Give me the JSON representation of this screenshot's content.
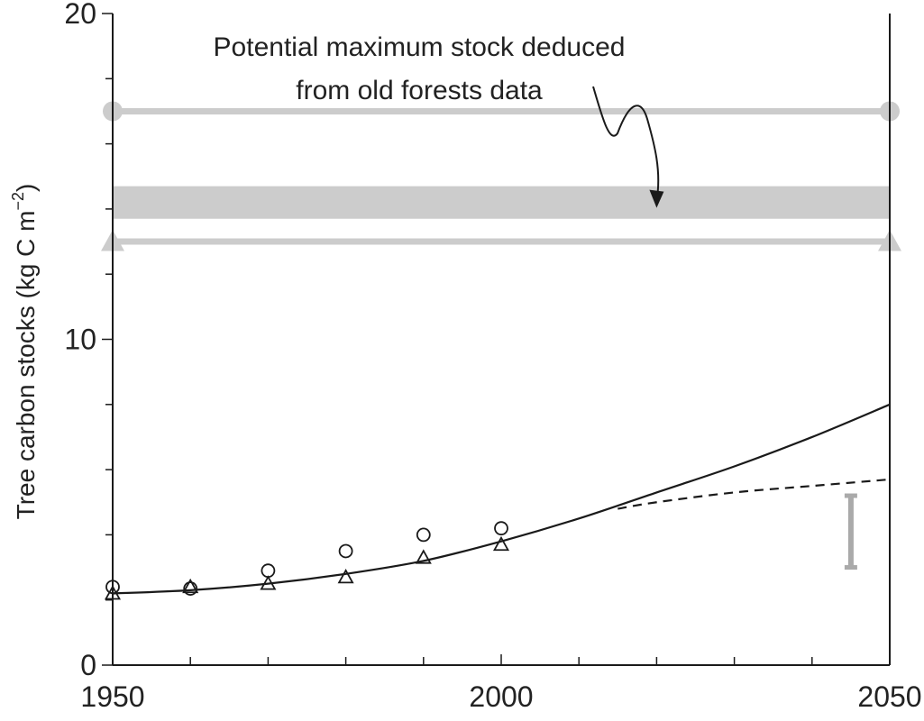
{
  "chart_data": {
    "type": "line",
    "title": "",
    "xlabel": "",
    "ylabel": "Tree carbon stocks (kg C m",
    "ylabel_sup": "−2",
    "ylabel_close": ")",
    "xlim": [
      1950,
      2050
    ],
    "ylim": [
      0,
      20
    ],
    "x_ticks": [
      1950,
      2000,
      2050
    ],
    "y_ticks": [
      0,
      10,
      20
    ],
    "x_minor_step": 10,
    "y_minor_step": 2,
    "grid": false,
    "legend": "none",
    "series": [
      {
        "style": "solid",
        "color": "#1a1a1a",
        "x": [
          1950,
          1960,
          1970,
          1980,
          1990,
          2000,
          2010,
          2020,
          2030,
          2040,
          2050
        ],
        "y": [
          2.2,
          2.3,
          2.5,
          2.8,
          3.2,
          3.8,
          4.5,
          5.3,
          6.1,
          7.0,
          8.0
        ]
      },
      {
        "style": "dashed",
        "color": "#1a1a1a",
        "x": [
          2015,
          2020,
          2030,
          2040,
          2050
        ],
        "y": [
          4.8,
          5.0,
          5.3,
          5.5,
          5.7
        ]
      },
      {
        "style": "markers",
        "marker": "circle",
        "color": "#1a1a1a",
        "x": [
          1950,
          1960,
          1970,
          1980,
          1990,
          2000
        ],
        "y": [
          2.4,
          2.35,
          2.9,
          3.5,
          4.0,
          4.2
        ]
      },
      {
        "style": "markers",
        "marker": "triangle",
        "color": "#1a1a1a",
        "x": [
          1950,
          1960,
          1970,
          1980,
          1990,
          2000
        ],
        "y": [
          2.2,
          2.4,
          2.5,
          2.7,
          3.3,
          3.7
        ]
      }
    ],
    "reference_lines": [
      {
        "y": 17.0,
        "end_marker": "circle",
        "color": "#cccccc"
      },
      {
        "y": 13.0,
        "end_marker": "triangle",
        "color": "#cccccc"
      }
    ],
    "band": {
      "y_low": 13.7,
      "y_high": 14.7,
      "color": "#cccccc"
    },
    "error_bar": {
      "x": 2045,
      "y_low": 3.0,
      "y_high": 5.2,
      "color": "#aaaaaa"
    },
    "annotation": {
      "lines": [
        "Potential maximum stock deduced",
        "from old forests data"
      ],
      "arrow_target": {
        "x": 2020,
        "y": 14.2
      }
    }
  }
}
